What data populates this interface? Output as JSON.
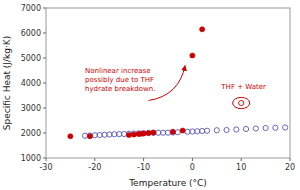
{
  "chart_data": {
    "type": "scatter",
    "xlabel": "Temperature (°C)",
    "ylabel": "Specific Heat (J/kg·K)",
    "xlim": [
      -30,
      20
    ],
    "ylim": [
      1000,
      7000
    ],
    "xticks": [
      -30,
      -20,
      -10,
      0,
      10,
      20
    ],
    "yticks": [
      1000,
      2000,
      3000,
      4000,
      5000,
      6000,
      7000
    ],
    "grid": false,
    "series": [
      {
        "color": "#5555bb",
        "marker": "open_circle",
        "x": [
          -22,
          -21,
          -20,
          -19,
          -18,
          -17,
          -16,
          -15,
          -14,
          -13,
          -12,
          -11,
          -10,
          -9,
          -8,
          -7,
          -6,
          -5,
          -4,
          -3,
          -1,
          0,
          1,
          2,
          3,
          5,
          7,
          9,
          11,
          13,
          15,
          17,
          19
        ],
        "values": [
          1890,
          1900,
          1910,
          1920,
          1930,
          1940,
          1950,
          1955,
          1960,
          1970,
          1980,
          1985,
          1990,
          2000,
          2005,
          2010,
          2010,
          2015,
          2020,
          2030,
          2050,
          2060,
          2070,
          2080,
          2090,
          2110,
          2120,
          2140,
          2160,
          2180,
          2200,
          2210,
          2220
        ]
      },
      {
        "color": "#cc0000",
        "marker": "circle",
        "x": [
          -25,
          -21,
          -13,
          -12,
          -11,
          -10.5,
          -10,
          -9,
          -8,
          -4,
          -2,
          0,
          2
        ],
        "values": [
          1870,
          1870,
          1920,
          1940,
          1960,
          1970,
          1980,
          2000,
          2020,
          2050,
          2100,
          5100,
          6150
        ]
      },
      {
        "color": "#cc0000",
        "marker": "open_circle",
        "x": [
          10
        ],
        "values": [
          3200
        ]
      }
    ],
    "annotations": [
      {
        "text": "Nonlinear increase\npossibly due to THF\nhydrate breakdown.",
        "x": -22,
        "y": 3600
      },
      {
        "text": "THF + Water",
        "x": 10.5,
        "y": 3700
      }
    ],
    "arrows": [
      {
        "x": -9,
        "y": 3300,
        "x_end": -1.5,
        "y_end": 4700
      }
    ],
    "highlights": [
      {
        "x": 10,
        "y": 3200,
        "width": 3.5,
        "height": 450
      }
    ]
  }
}
